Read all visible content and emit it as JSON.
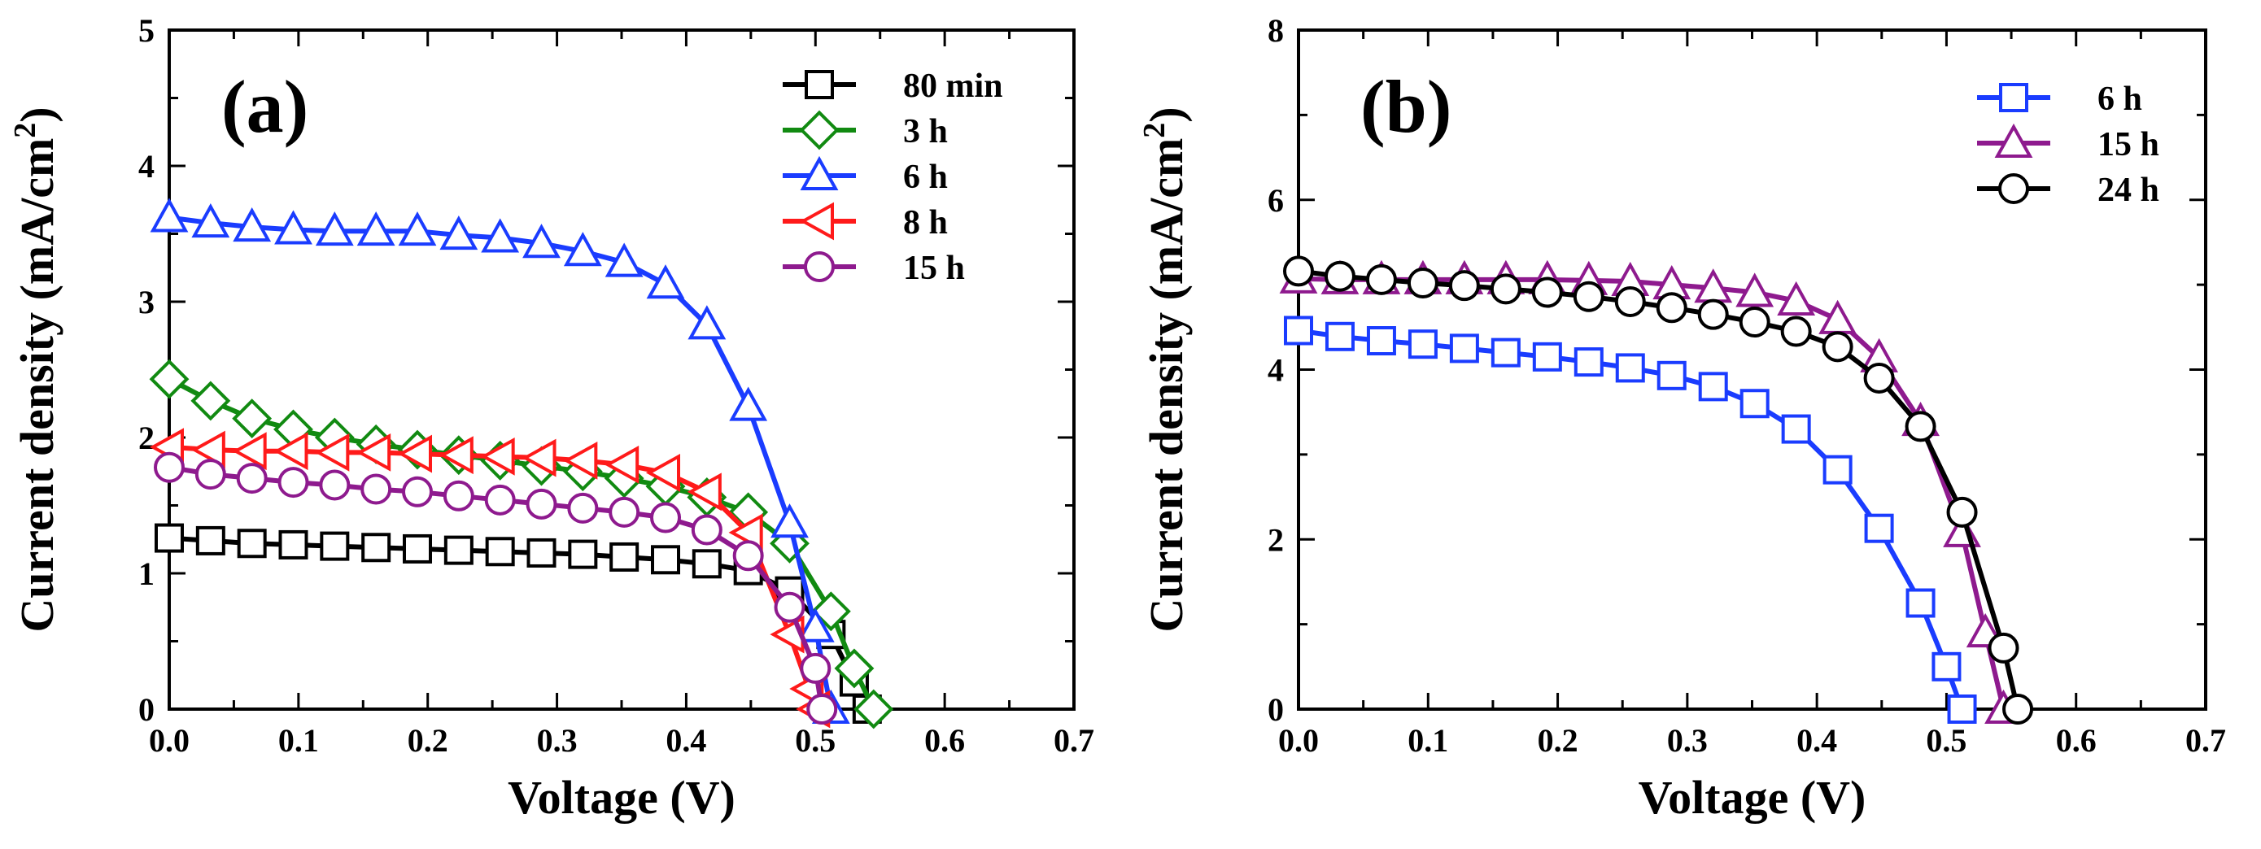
{
  "chart_data": [
    {
      "type": "line",
      "panel_label": "(a)",
      "xlabel": "Voltage (V)",
      "ylabel": "Current density (mA/cm",
      "ylabel_sup": "2",
      "ylabel_close": ")",
      "xlim": [
        0.0,
        0.7
      ],
      "ylim": [
        0,
        5
      ],
      "xticks": [
        0.0,
        0.1,
        0.2,
        0.3,
        0.4,
        0.5,
        0.6,
        0.7
      ],
      "xtick_labels": [
        "0.0",
        "0.1",
        "0.2",
        "0.3",
        "0.4",
        "0.5",
        "0.6",
        "0.7"
      ],
      "yticks": [
        0,
        1,
        2,
        3,
        4,
        5
      ],
      "ytick_labels": [
        "0",
        "1",
        "2",
        "3",
        "4",
        "5"
      ],
      "legend_position": "top-right",
      "series": [
        {
          "name": "80 min",
          "color": "#000000",
          "marker": "square",
          "x": [
            0,
            0.032,
            0.064,
            0.096,
            0.128,
            0.16,
            0.192,
            0.224,
            0.256,
            0.288,
            0.32,
            0.352,
            0.384,
            0.416,
            0.448,
            0.48,
            0.512,
            0.53,
            0.54
          ],
          "y": [
            1.26,
            1.24,
            1.22,
            1.21,
            1.2,
            1.19,
            1.18,
            1.17,
            1.16,
            1.15,
            1.14,
            1.12,
            1.1,
            1.07,
            1.02,
            0.87,
            0.55,
            0.2,
            0
          ]
        },
        {
          "name": "3 h",
          "color": "#118a11",
          "marker": "diamond",
          "x": [
            0,
            0.032,
            0.064,
            0.096,
            0.128,
            0.16,
            0.192,
            0.224,
            0.256,
            0.288,
            0.32,
            0.352,
            0.384,
            0.416,
            0.448,
            0.48,
            0.512,
            0.53,
            0.545
          ],
          "y": [
            2.43,
            2.27,
            2.14,
            2.06,
            2.0,
            1.95,
            1.91,
            1.87,
            1.83,
            1.79,
            1.75,
            1.7,
            1.64,
            1.56,
            1.45,
            1.22,
            0.72,
            0.3,
            0
          ]
        },
        {
          "name": "6 h",
          "color": "#1a3cff",
          "marker": "triangle-up",
          "x": [
            0,
            0.032,
            0.064,
            0.096,
            0.128,
            0.16,
            0.192,
            0.224,
            0.256,
            0.288,
            0.32,
            0.352,
            0.384,
            0.416,
            0.448,
            0.48,
            0.5,
            0.512
          ],
          "y": [
            3.62,
            3.58,
            3.55,
            3.53,
            3.52,
            3.52,
            3.52,
            3.49,
            3.47,
            3.43,
            3.37,
            3.29,
            3.13,
            2.83,
            2.23,
            1.37,
            0.6,
            0
          ]
        },
        {
          "name": "8 h",
          "color": "#ff1a1a",
          "marker": "triangle-left",
          "x": [
            0,
            0.032,
            0.064,
            0.096,
            0.128,
            0.16,
            0.192,
            0.224,
            0.256,
            0.288,
            0.32,
            0.352,
            0.384,
            0.416,
            0.448,
            0.48,
            0.495,
            0.5
          ],
          "y": [
            1.93,
            1.91,
            1.9,
            1.9,
            1.89,
            1.89,
            1.88,
            1.87,
            1.86,
            1.85,
            1.83,
            1.8,
            1.74,
            1.6,
            1.3,
            0.55,
            0.15,
            0
          ]
        },
        {
          "name": "15 h",
          "color": "#8e1a8e",
          "marker": "circle",
          "x": [
            0,
            0.032,
            0.064,
            0.096,
            0.128,
            0.16,
            0.192,
            0.224,
            0.256,
            0.288,
            0.32,
            0.352,
            0.384,
            0.416,
            0.448,
            0.48,
            0.5,
            0.505
          ],
          "y": [
            1.78,
            1.73,
            1.7,
            1.67,
            1.65,
            1.62,
            1.6,
            1.57,
            1.54,
            1.51,
            1.48,
            1.45,
            1.41,
            1.32,
            1.13,
            0.75,
            0.3,
            0
          ]
        }
      ]
    },
    {
      "type": "line",
      "panel_label": "(b)",
      "xlabel": "Voltage (V)",
      "ylabel": "Current density (mA/cm",
      "ylabel_sup": "2",
      "ylabel_close": ")",
      "xlim": [
        0.0,
        0.7
      ],
      "ylim": [
        0,
        8
      ],
      "xticks": [
        0.0,
        0.1,
        0.2,
        0.3,
        0.4,
        0.5,
        0.6,
        0.7
      ],
      "xtick_labels": [
        "0.0",
        "0.1",
        "0.2",
        "0.3",
        "0.4",
        "0.5",
        "0.6",
        "0.7"
      ],
      "yticks": [
        0,
        2,
        4,
        6,
        8
      ],
      "ytick_labels": [
        "0",
        "2",
        "4",
        "6",
        "8"
      ],
      "legend_position": "top-right",
      "series": [
        {
          "name": "6 h",
          "color": "#1a3cff",
          "marker": "square",
          "x": [
            0,
            0.032,
            0.064,
            0.096,
            0.128,
            0.16,
            0.192,
            0.224,
            0.256,
            0.288,
            0.32,
            0.352,
            0.384,
            0.416,
            0.448,
            0.48,
            0.5,
            0.512
          ],
          "y": [
            4.46,
            4.39,
            4.34,
            4.3,
            4.25,
            4.2,
            4.15,
            4.09,
            4.02,
            3.93,
            3.8,
            3.6,
            3.3,
            2.82,
            2.13,
            1.25,
            0.5,
            0
          ]
        },
        {
          "name": "15 h",
          "color": "#8e1a8e",
          "marker": "triangle-up",
          "x": [
            0,
            0.032,
            0.064,
            0.096,
            0.128,
            0.16,
            0.192,
            0.224,
            0.256,
            0.288,
            0.32,
            0.352,
            0.384,
            0.416,
            0.448,
            0.48,
            0.512,
            0.53,
            0.544
          ],
          "y": [
            5.07,
            5.06,
            5.06,
            5.06,
            5.06,
            5.06,
            5.06,
            5.05,
            5.04,
            5.0,
            4.96,
            4.91,
            4.81,
            4.59,
            4.14,
            3.39,
            2.08,
            0.9,
            0
          ]
        },
        {
          "name": "24 h",
          "color": "#000000",
          "marker": "circle",
          "x": [
            0,
            0.032,
            0.064,
            0.096,
            0.128,
            0.16,
            0.192,
            0.224,
            0.256,
            0.288,
            0.32,
            0.352,
            0.384,
            0.416,
            0.448,
            0.48,
            0.512,
            0.544,
            0.555
          ],
          "y": [
            5.16,
            5.1,
            5.06,
            5.02,
            4.99,
            4.95,
            4.91,
            4.86,
            4.8,
            4.73,
            4.65,
            4.56,
            4.45,
            4.27,
            3.9,
            3.33,
            2.32,
            0.72,
            0
          ]
        }
      ]
    }
  ]
}
